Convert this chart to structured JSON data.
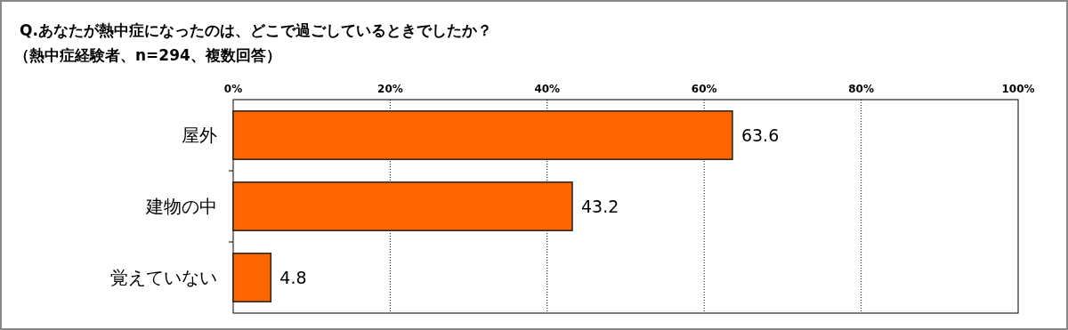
{
  "chart_data": {
    "type": "bar",
    "orientation": "horizontal",
    "title": "Q.あなたが熱中症になったのは、どこで過ごしているときでしたか？",
    "subtitle": "（熱中症経験者、n=294、複数回答）",
    "categories": [
      "屋外",
      "建物の中",
      "覚えていない"
    ],
    "values": [
      63.6,
      43.2,
      4.8
    ],
    "color": "#ff6600",
    "data_labels": true,
    "xlim": [
      0,
      100
    ],
    "xticks": [
      {
        "value": 0,
        "label": "0%"
      },
      {
        "value": 20,
        "label": "20%"
      },
      {
        "value": 40,
        "label": "40%"
      },
      {
        "value": 60,
        "label": "60%"
      },
      {
        "value": 80,
        "label": "80%"
      },
      {
        "value": 100,
        "label": "100%"
      }
    ],
    "grid": "x"
  }
}
